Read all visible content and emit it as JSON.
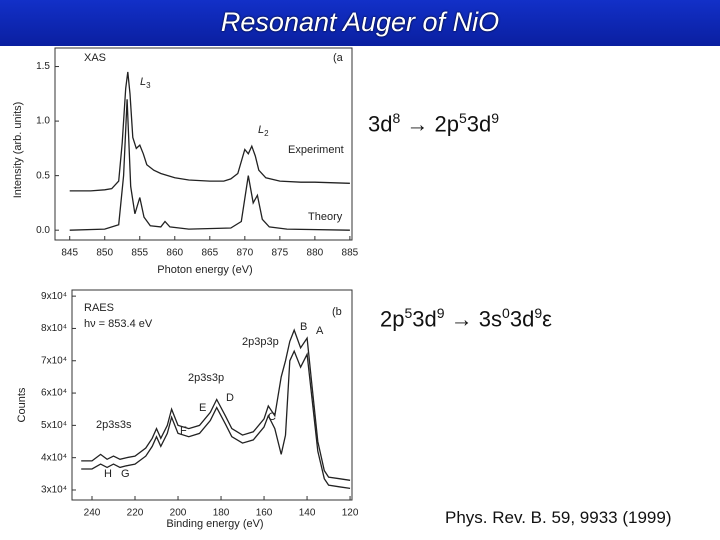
{
  "header": {
    "title": "Resonant Auger of NiO"
  },
  "figures": [
    {
      "chart_data": {
        "type": "line",
        "x_label": "Photon energy (eV)",
        "y_label": "Intensity (arb. units)",
        "annotations": [
          {
            "text": "XAS"
          },
          {
            "text": "(a"
          },
          {
            "text": "L",
            "sub": "3"
          },
          {
            "text": "L",
            "sub": "2"
          }
        ],
        "xlim": [
          842.9,
          885.3
        ],
        "xticks": [
          845,
          850,
          855,
          860,
          865,
          870,
          875,
          880,
          885
        ],
        "ylim": [
          -0.09,
          1.67
        ],
        "yticks": [
          {
            "value": 0,
            "label": "0.0"
          },
          0.5,
          {
            "value": 1,
            "label": "1.0"
          },
          1.5
        ],
        "series": [
          {
            "name": "Experiment",
            "color": "#222222",
            "x": [
              845,
              848,
              850,
              851,
              852,
              852.5,
              853,
              853.3,
              853.6,
              854,
              854.5,
              855,
              855.5,
              856,
              857,
              858,
              860,
              862,
              865,
              867,
              868,
              869,
              870,
              870.5,
              871,
              871.5,
              872,
              873,
              875,
              878,
              880,
              885
            ],
            "values": [
              0.36,
              0.36,
              0.37,
              0.38,
              0.45,
              0.8,
              1.3,
              1.45,
              1.25,
              0.85,
              0.75,
              0.78,
              0.7,
              0.6,
              0.55,
              0.52,
              0.48,
              0.46,
              0.45,
              0.45,
              0.47,
              0.52,
              0.74,
              0.7,
              0.77,
              0.68,
              0.55,
              0.48,
              0.45,
              0.44,
              0.44,
              0.43
            ]
          },
          {
            "name": "Theory",
            "color": "#222222",
            "x": [
              845,
              850,
              852,
              852.7,
              853.2,
              853.7,
              854.3,
              855,
              855.6,
              856.5,
              858,
              858.6,
              859.3,
              862,
              868,
              869.5,
              870.5,
              871.2,
              871.8,
              872.5,
              873.5,
              876,
              885
            ],
            "values": [
              0,
              0.01,
              0.05,
              0.5,
              1.2,
              0.4,
              0.15,
              0.3,
              0.12,
              0.04,
              0.03,
              0.08,
              0.03,
              0.01,
              0.02,
              0.08,
              0.5,
              0.25,
              0.32,
              0.1,
              0.03,
              0.01,
              0
            ]
          }
        ]
      }
    },
    {
      "chart_data": {
        "type": "line",
        "x_label": "Binding energy (eV)",
        "y_label": "Counts",
        "annotations": [
          {
            "text": "RAES"
          },
          {
            "text": "hν = 853.4 eV"
          },
          {
            "text": "(b"
          },
          {
            "text": "2p3p3p"
          },
          {
            "text": "B"
          },
          {
            "text": "A"
          },
          {
            "text": "2p3s3p"
          },
          {
            "text": "D"
          },
          {
            "text": "E"
          },
          {
            "text": "C"
          },
          {
            "text": "F"
          },
          {
            "text": "2p3s3s"
          },
          {
            "text": "H"
          },
          {
            "text": "G"
          }
        ],
        "xlim": [
          249.3,
          119.1
        ],
        "xticks": [
          240,
          220,
          200,
          180,
          160,
          140,
          120
        ],
        "ylim": [
          26900,
          91900
        ],
        "yticks": [
          {
            "value": 30000,
            "label": "3x10⁴"
          },
          {
            "value": 40000,
            "label": "4x10⁴"
          },
          {
            "value": 50000,
            "label": "5x10⁴"
          },
          {
            "value": 60000,
            "label": "6x10⁴"
          },
          {
            "value": 70000,
            "label": "7x10⁴"
          },
          {
            "value": 80000,
            "label": "8x10⁴"
          },
          {
            "value": 90000,
            "label": "9x10⁴"
          }
        ],
        "series": [
          {
            "color": "#222222",
            "x": [
              245,
              240,
              236,
              233,
              230,
              227,
              224,
              220,
              215,
              212,
              210,
              208,
              205,
              203,
              200,
              195,
              190,
              185,
              182,
              178,
              175,
              170,
              165,
              160,
              158,
              155,
              152,
              150,
              148,
              146,
              143,
              140,
              138,
              135,
              132,
              130,
              125,
              120
            ],
            "values": [
              39000,
              39000,
              41000,
              39500,
              40500,
              39500,
              40000,
              40500,
              43000,
              46000,
              49000,
              46000,
              50000,
              55000,
              50000,
              49000,
              50000,
              54000,
              58000,
              53000,
              49000,
              47000,
              48000,
              52000,
              56000,
              53000,
              65000,
              70000,
              76000,
              79500,
              74000,
              77000,
              64000,
              45000,
              36000,
              34000,
              33500,
              33000
            ]
          },
          {
            "color": "#222222",
            "x": [
              245,
              240,
              236,
              233,
              230,
              227,
              224,
              220,
              215,
              212,
              210,
              208,
              205,
              203,
              200,
              195,
              190,
              185,
              182,
              178,
              175,
              170,
              165,
              160,
              158,
              155,
              152,
              150,
              148,
              146,
              143,
              140,
              138,
              135,
              132,
              130,
              125,
              120
            ],
            "values": [
              36500,
              36500,
              38000,
              37000,
              38000,
              37000,
              37500,
              38000,
              40500,
              43500,
              46500,
              43500,
              47500,
              52500,
              47500,
              46500,
              47500,
              51500,
              55500,
              50500,
              46500,
              44500,
              45500,
              49500,
              53000,
              49000,
              41000,
              47000,
              70000,
              73000,
              68000,
              72000,
              60000,
              42000,
              33500,
              31500,
              31000,
              30500
            ]
          }
        ]
      }
    }
  ],
  "transitions": [
    [
      {
        "text": "3d",
        "sup": "8"
      },
      {
        "text": " → 2p",
        "sup": "5"
      },
      {
        "text": "3d",
        "sup": "9"
      }
    ],
    [
      {
        "text": "2p",
        "sup": "5"
      },
      {
        "text": "3d",
        "sup": "9"
      },
      {
        "text": " → 3s",
        "sup": "0"
      },
      {
        "text": "3d",
        "sup": "9"
      },
      {
        "text": "ε"
      }
    ]
  ],
  "citation": "Phys. Rev. B. 59, 9933 (1999)"
}
